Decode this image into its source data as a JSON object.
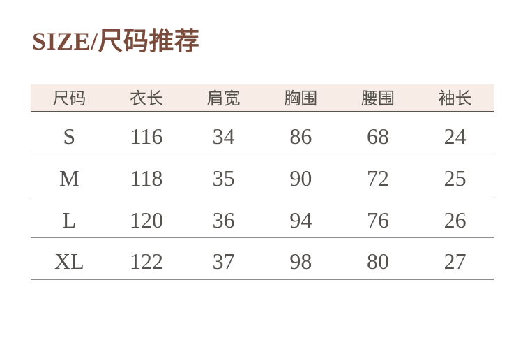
{
  "chart_data": {
    "type": "table",
    "title": "SIZE/尺码推荐",
    "columns": [
      "尺码",
      "衣长",
      "肩宽",
      "胸围",
      "腰围",
      "袖长"
    ],
    "rows": [
      [
        "S",
        116,
        34,
        86,
        68,
        24
      ],
      [
        "M",
        118,
        35,
        90,
        72,
        25
      ],
      [
        "L",
        120,
        36,
        94,
        76,
        26
      ],
      [
        "XL",
        122,
        37,
        98,
        80,
        27
      ]
    ]
  },
  "colors": {
    "title_text": "#7a4b3b",
    "header_background": "#f7ece6",
    "header_text": "#52504b",
    "cell_text": "#56534f",
    "header_divider": "#56524e",
    "row_divider": "#8f8c89"
  }
}
